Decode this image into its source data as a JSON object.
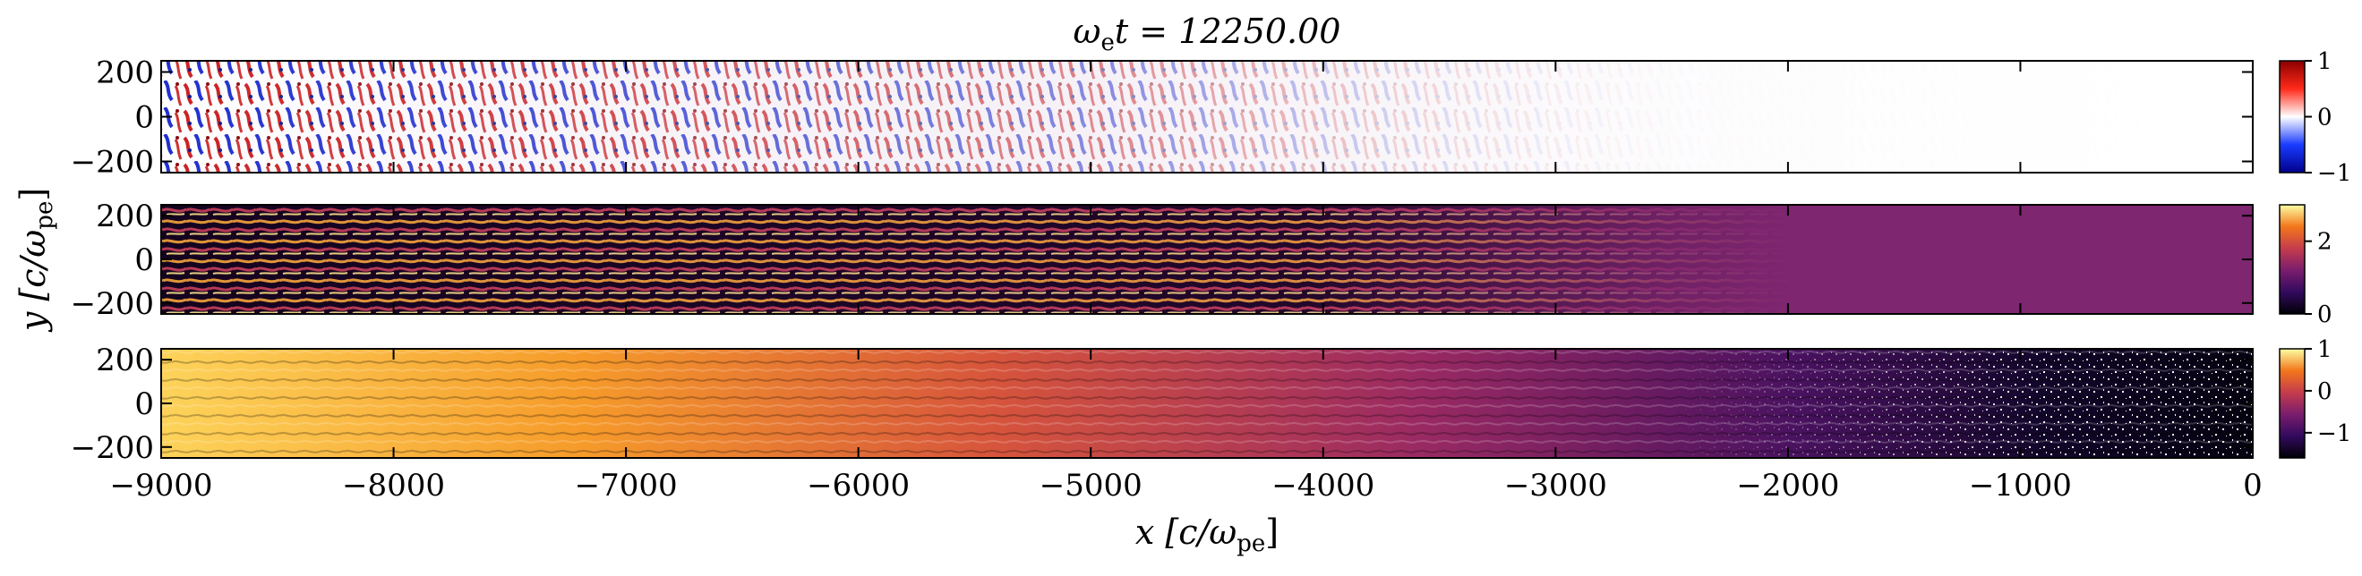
{
  "title": "ωet = 12250.00",
  "title_parts": {
    "omega": "ω",
    "sub": "e",
    "rest": "t = 12250.00"
  },
  "xlabel": {
    "main": "x [c/ω",
    "sub": "pe",
    "end": "]"
  },
  "ylabel": {
    "main": "y [c/ω",
    "sub": "pe",
    "end": "]"
  },
  "chart_data": [
    {
      "type": "heatmap",
      "name": "top-panel-field",
      "xlim": [
        -9000,
        0
      ],
      "ylim": [
        -250,
        250
      ],
      "colormap": "blue-white-red",
      "clim": [
        -1,
        1
      ],
      "colorbar_ticks": [
        1,
        0,
        -1
      ],
      "colorbar_labels": [
        "1",
        "0",
        "−1"
      ],
      "yticks": [
        200,
        0,
        -200
      ],
      "ytick_labels": [
        "200",
        "0",
        "−200"
      ],
      "description_trend": "strong turbulent fluctuations at left, fading to near zero toward x=0"
    },
    {
      "type": "heatmap",
      "name": "middle-panel-density",
      "xlim": [
        -9000,
        0
      ],
      "ylim": [
        -250,
        250
      ],
      "colormap": "inferno",
      "clim": [
        0,
        3
      ],
      "colorbar_ticks": [
        2,
        0
      ],
      "colorbar_labels": [
        "2",
        "0"
      ],
      "yticks": [
        200,
        0,
        -200
      ],
      "ytick_labels": [
        "200",
        "0",
        "−200"
      ],
      "description_trend": "filamentary structure at left, uniform value ~1 right of x=-2500"
    },
    {
      "type": "heatmap",
      "name": "bottom-panel-log",
      "xlim": [
        -9000,
        0
      ],
      "ylim": [
        -250,
        250
      ],
      "colormap": "inferno",
      "clim": [
        -1.6,
        1
      ],
      "colorbar_ticks": [
        1,
        0,
        -1
      ],
      "colorbar_labels": [
        "1",
        "0",
        "−1"
      ],
      "yticks": [
        200,
        0,
        -200
      ],
      "ytick_labels": [
        "200",
        "0",
        "−200"
      ],
      "description_trend": "high values at left decreasing to low values with sparse white speckle near x=0"
    }
  ],
  "xticks": [
    -9000,
    -8000,
    -7000,
    -6000,
    -5000,
    -4000,
    -3000,
    -2000,
    -1000,
    0
  ],
  "xtick_labels": [
    "−9000",
    "−8000",
    "−7000",
    "−6000",
    "−5000",
    "−4000",
    "−3000",
    "−2000",
    "−1000",
    "0"
  ]
}
